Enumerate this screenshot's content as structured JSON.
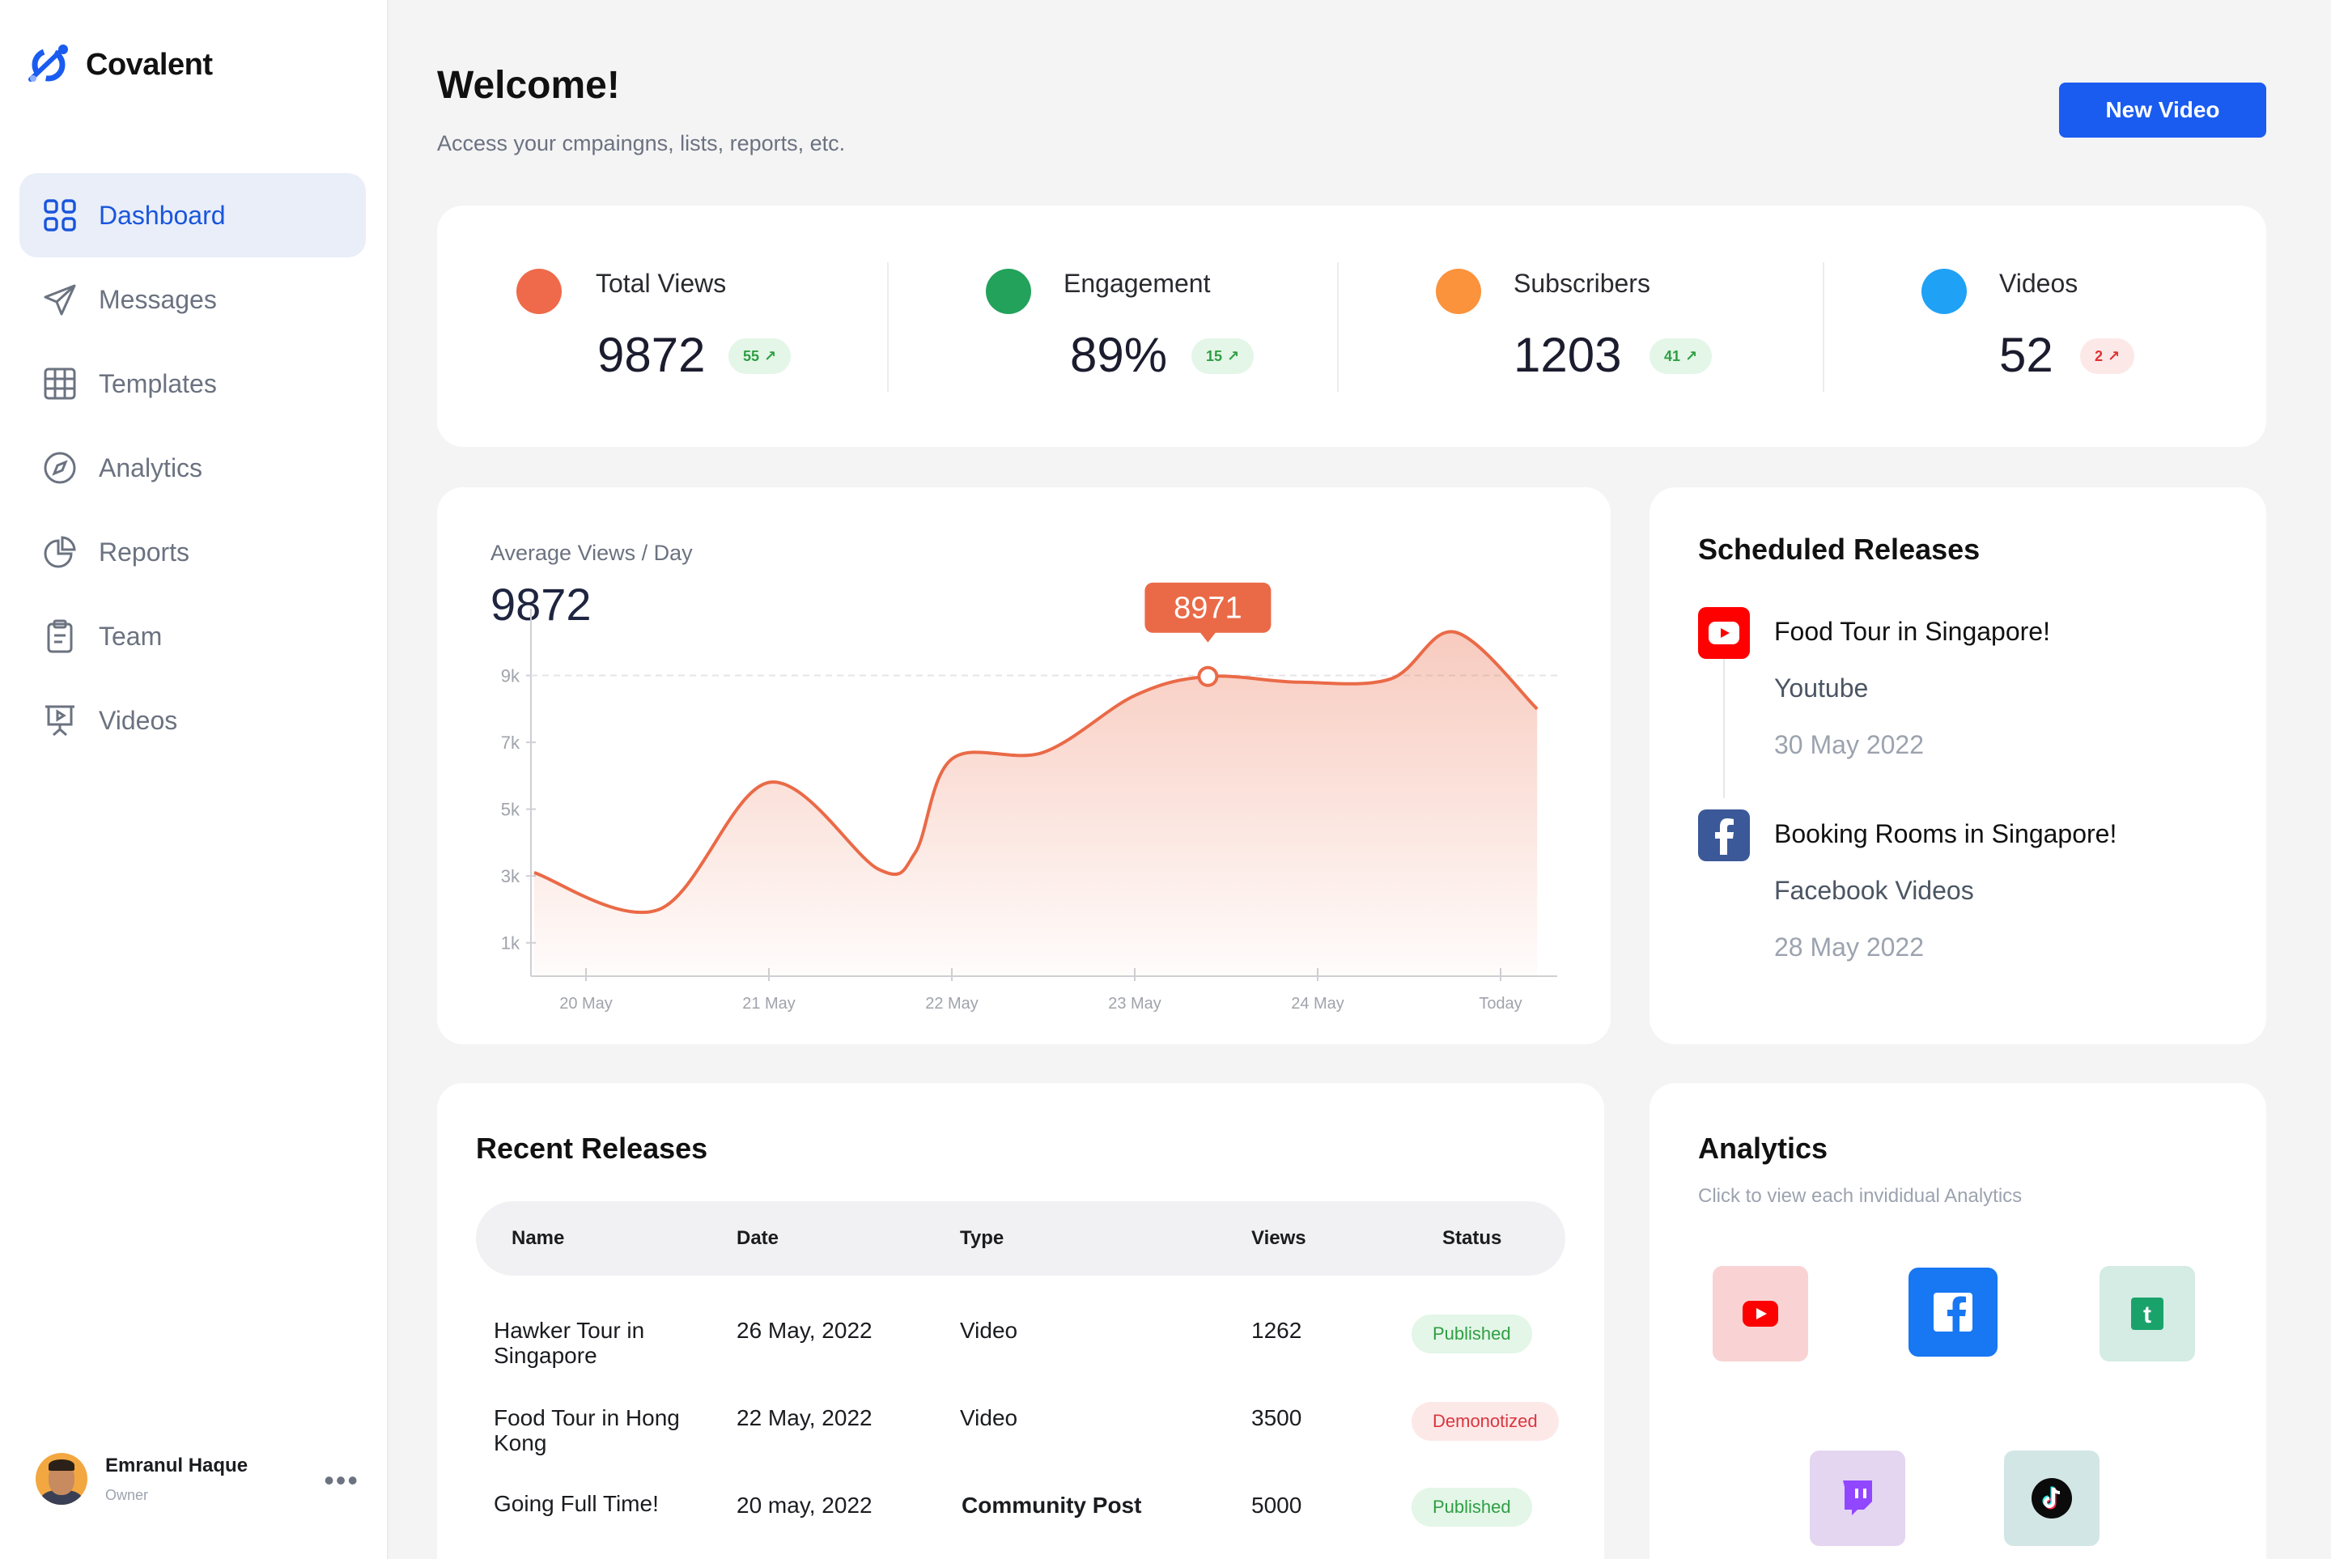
{
  "app": {
    "name": "Covalent"
  },
  "sidebar": {
    "items": [
      {
        "label": "Dashboard",
        "icon": "dashboard-grid-icon",
        "active": true
      },
      {
        "label": "Messages",
        "icon": "paper-plane-icon"
      },
      {
        "label": "Templates",
        "icon": "table-grid-icon"
      },
      {
        "label": "Analytics",
        "icon": "compass-icon"
      },
      {
        "label": "Reports",
        "icon": "pie-chart-icon"
      },
      {
        "label": "Team",
        "icon": "clipboard-icon"
      },
      {
        "label": "Videos",
        "icon": "presentation-board-icon"
      }
    ],
    "user": {
      "name": "Emranul Haque",
      "role": "Owner",
      "more": "•••"
    }
  },
  "header": {
    "title": "Welcome!",
    "subtitle": "Access your cmpaingns, lists, reports, etc.",
    "new_video_label": "New Video"
  },
  "stats": [
    {
      "label": "Total Views",
      "value": "9872",
      "badge": "55",
      "trend": "up",
      "dot_color": "#ef6a4a"
    },
    {
      "label": "Engagement",
      "value": "89%",
      "badge": "15",
      "trend": "up",
      "dot_color": "#22a25b"
    },
    {
      "label": "Subscribers",
      "value": "1203",
      "badge": "41",
      "trend": "up",
      "dot_color": "#fb923c"
    },
    {
      "label": "Videos",
      "value": "52",
      "badge": "2",
      "trend": "down",
      "dot_color": "#1fa1f5"
    }
  ],
  "views_chart": {
    "title": "Average Views / Day",
    "value": "9872",
    "tooltip": "8971",
    "accent": "#ea6a47"
  },
  "chart_data": {
    "type": "area",
    "title": "Average Views / Day",
    "x_ticks": [
      "20 May",
      "21 May",
      "22 May",
      "23 May",
      "24 May",
      "Today"
    ],
    "y_ticks": [
      "1k",
      "3k",
      "5k",
      "7k",
      "9k"
    ],
    "x": [
      0,
      0.4,
      1.0,
      1.6,
      1.8,
      2.0,
      2.5,
      3.0,
      3.4,
      3.9,
      4.4,
      4.75,
      5.2
    ],
    "values": [
      3100,
      2000,
      5800,
      3200,
      3700,
      6500,
      6700,
      8400,
      8971,
      8800,
      8900,
      10300,
      8000
    ],
    "highlight": {
      "x": 3.4,
      "value": 8971,
      "label": "8971"
    },
    "ylim": [
      0,
      11000
    ],
    "grid": false
  },
  "scheduled": {
    "title": "Scheduled Releases",
    "items": [
      {
        "title": "Food Tour in Singapore!",
        "platform": "Youtube",
        "date": "30 May 2022",
        "icon": "youtube-icon"
      },
      {
        "title": "Booking Rooms in Singapore!",
        "platform": "Facebook Videos",
        "date": "28 May 2022",
        "icon": "facebook-icon"
      }
    ]
  },
  "recent": {
    "title": "Recent Releases",
    "columns": [
      "Name",
      "Date",
      "Type",
      "Views",
      "Status"
    ],
    "rows": [
      {
        "name": "Hawker Tour in Singapore",
        "date": "26 May, 2022",
        "type": "Video",
        "views": "1262",
        "status": "Published"
      },
      {
        "name": "Food Tour in Hong Kong",
        "date": "22 May, 2022",
        "type": "Video",
        "views": "3500",
        "status": "Demonotized"
      },
      {
        "name": "Going Full Time!",
        "date": "20 may, 2022",
        "type": "Community Post",
        "views": "5000",
        "status": "Published"
      }
    ]
  },
  "analytics": {
    "title": "Analytics",
    "subtitle": "Click to view each invididual Analytics",
    "platforms": [
      "youtube-icon",
      "facebook-icon",
      "tumblr-icon",
      "twitch-icon",
      "tiktok-icon"
    ]
  }
}
